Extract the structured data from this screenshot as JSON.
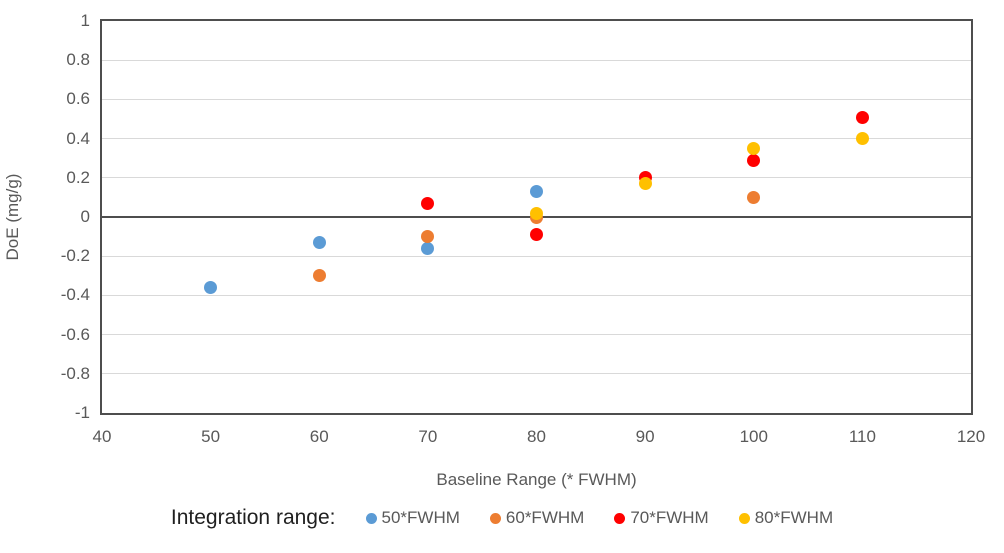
{
  "chart_data": {
    "type": "scatter",
    "title": "",
    "xlabel": "Baseline Range (* FWHM)",
    "ylabel": "DoE (mg/g)",
    "xlim": [
      40,
      120
    ],
    "ylim": [
      -1,
      1
    ],
    "x_ticks": [
      40,
      50,
      60,
      70,
      80,
      90,
      100,
      110,
      120
    ],
    "y_ticks": [
      1,
      0.8,
      0.6,
      0.4,
      0.2,
      0,
      -0.2,
      -0.4,
      -0.6,
      -0.8,
      -1
    ],
    "grid": "horizontal",
    "gridline_color": "#d9d9d9",
    "axis_color": "#4e4e4e",
    "tick_label_color": "#595959",
    "legend_position": "bottom",
    "legend_title": "Integration range:",
    "series": [
      {
        "name": "50*FWHM",
        "color": "#5B9BD5",
        "points": [
          [
            50,
            -0.36
          ],
          [
            60,
            -0.13
          ],
          [
            70,
            -0.16
          ],
          [
            80,
            0.13
          ]
        ]
      },
      {
        "name": "60*FWHM",
        "color": "#ED7D31",
        "points": [
          [
            60,
            -0.3
          ],
          [
            70,
            -0.1
          ],
          [
            80,
            0.0
          ],
          [
            100,
            0.1
          ]
        ]
      },
      {
        "name": "70*FWHM",
        "color": "#FF0000",
        "points": [
          [
            70,
            0.07
          ],
          [
            80,
            -0.09
          ],
          [
            90,
            0.2
          ],
          [
            100,
            0.29
          ],
          [
            110,
            0.51
          ]
        ]
      },
      {
        "name": "80*FWHM",
        "color": "#FFC000",
        "points": [
          [
            80,
            0.02
          ],
          [
            90,
            0.17
          ],
          [
            100,
            0.35
          ],
          [
            110,
            0.4
          ]
        ]
      }
    ]
  }
}
